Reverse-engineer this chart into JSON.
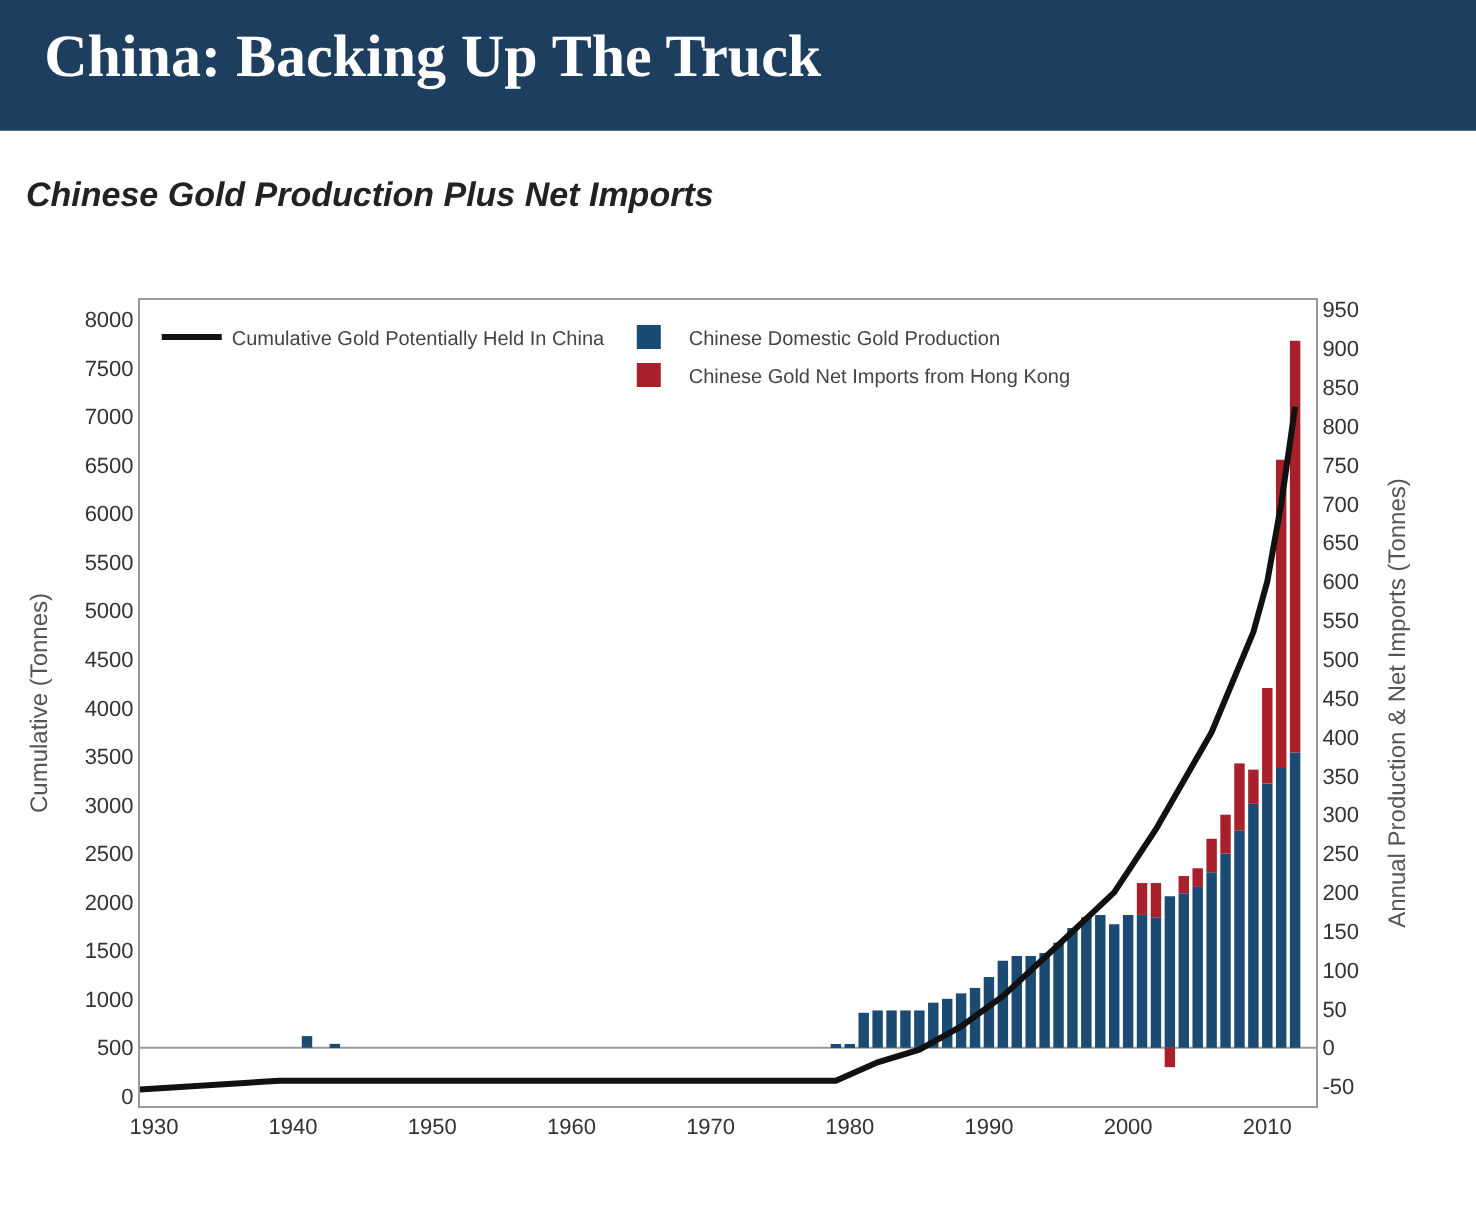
{
  "chart_data": {
    "type": "bar",
    "title": "China: Backing Up The Truck",
    "subtitle": "Chinese Gold Production Plus Net Imports",
    "ylabel": "Cumulative (Tonnes)",
    "y2label": "Annual Production & Net Imports (Tonnes)",
    "x": [
      1941,
      1943,
      1979,
      1980,
      1981,
      1982,
      1983,
      1984,
      1985,
      1986,
      1987,
      1988,
      1989,
      1990,
      1991,
      1992,
      1993,
      1994,
      1995,
      1996,
      1997,
      1998,
      1999,
      2000,
      2001,
      2002,
      2003,
      2004,
      2005,
      2006,
      2007,
      2008,
      2009,
      2010,
      2011,
      2012
    ],
    "stacked": true,
    "series": [
      {
        "name": "Chinese Domestic Gold Production",
        "color": "#1b4a72",
        "axis": "y2",
        "values": [
          15,
          5,
          4,
          4,
          45,
          48,
          48,
          48,
          48,
          58,
          63,
          70,
          77,
          91,
          112,
          118,
          118,
          122,
          135,
          154,
          168,
          171,
          159,
          171,
          171,
          168,
          195,
          199,
          207,
          226,
          250,
          280,
          314,
          340,
          360,
          380
        ]
      },
      {
        "name": "Chinese Gold Net Imports from Hong Kong",
        "color": "#a8202a",
        "axis": "y2",
        "values": [
          null,
          null,
          null,
          null,
          null,
          null,
          null,
          null,
          null,
          null,
          null,
          null,
          null,
          null,
          null,
          null,
          null,
          null,
          null,
          null,
          null,
          null,
          null,
          null,
          41,
          44,
          -25,
          22,
          24,
          43,
          50,
          86,
          44,
          123,
          397,
          530
        ]
      },
      {
        "name": "Cumulative Gold Potentially Held In China",
        "type": "line",
        "color": "#111111",
        "axis": "y",
        "x": [
          1929,
          1939,
          1979,
          1982,
          1985,
          1988,
          1991,
          1995,
          1999,
          2002,
          2006,
          2009,
          2010,
          2011,
          2012
        ],
        "values": [
          70,
          160,
          160,
          350,
          480,
          720,
          1030,
          1560,
          2100,
          2750,
          3750,
          4780,
          5300,
          6100,
          7100
        ]
      }
    ],
    "xlim": [
      1929,
      2013.5
    ],
    "xticks": [
      1930,
      1940,
      1950,
      1960,
      1970,
      1980,
      1990,
      2000,
      2010
    ],
    "ylim": [
      -100,
      8200
    ],
    "yticks": [
      0,
      500,
      1000,
      1500,
      2000,
      2500,
      3000,
      3500,
      4000,
      4500,
      5000,
      5500,
      6000,
      6500,
      7000,
      7500,
      8000
    ],
    "y2lim": [
      -75,
      962.5
    ],
    "y2ticks": [
      -50,
      0,
      50,
      100,
      150,
      200,
      250,
      300,
      350,
      400,
      450,
      500,
      550,
      600,
      650,
      700,
      750,
      800,
      850,
      900,
      950
    ],
    "ref_lines": [
      {
        "axis": "y2",
        "value": 0,
        "color": "#999999"
      }
    ],
    "grid": false,
    "legend": "top"
  }
}
